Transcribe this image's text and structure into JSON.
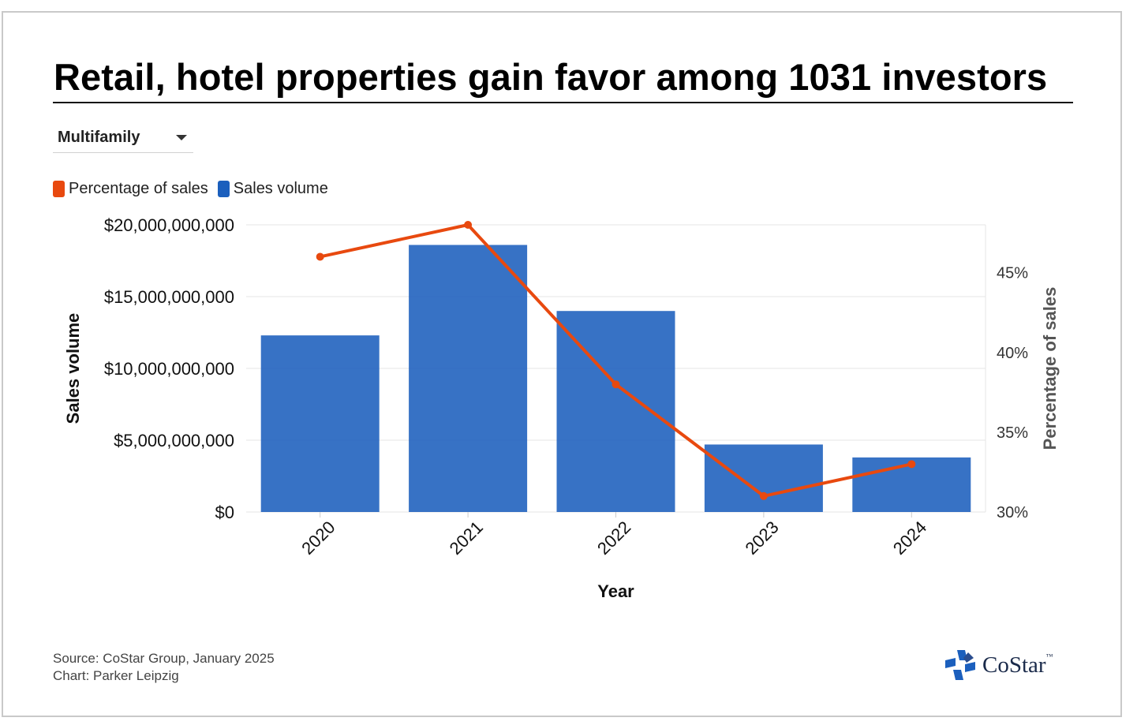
{
  "title": "Retail, hotel properties gain favor among 1031 investors",
  "dropdown": {
    "selected": "Multifamily"
  },
  "legend": [
    {
      "label": "Percentage of sales",
      "color": "#e8490f"
    },
    {
      "label": "Sales volume",
      "color": "#1b5fbd"
    }
  ],
  "footer": {
    "source": "Source: CoStar Group, January 2025",
    "credit": "Chart: Parker Leipzig"
  },
  "logo": {
    "text": "CoStar",
    "tm": "™",
    "icon": "costar-star-icon"
  },
  "chart_data": {
    "type": "bar",
    "categories": [
      "2020",
      "2021",
      "2022",
      "2023",
      "2024"
    ],
    "xlabel": "Year",
    "ylabel": "Sales volume",
    "y2label": "Percentage of sales",
    "ylim": [
      0,
      20000000000
    ],
    "y2lim": [
      30,
      48
    ],
    "y_ticks": [
      "$0",
      "$5,000,000,000",
      "$10,000,000,000",
      "$15,000,000,000",
      "$20,000,000,000"
    ],
    "y_tick_values": [
      0,
      5000000000,
      10000000000,
      15000000000,
      20000000000
    ],
    "y2_ticks": [
      "30%",
      "35%",
      "40%",
      "45%"
    ],
    "y2_tick_values": [
      30,
      35,
      40,
      45
    ],
    "series": [
      {
        "name": "Sales volume",
        "type": "bar",
        "axis": "left",
        "color": "#1b5fbd",
        "values": [
          12300000000,
          18600000000,
          14000000000,
          4700000000,
          3800000000
        ]
      },
      {
        "name": "Percentage of sales",
        "type": "line",
        "axis": "right",
        "color": "#e8490f",
        "values": [
          46,
          48,
          38,
          31,
          33
        ]
      }
    ],
    "grid": true,
    "legend_position": "top-left"
  }
}
